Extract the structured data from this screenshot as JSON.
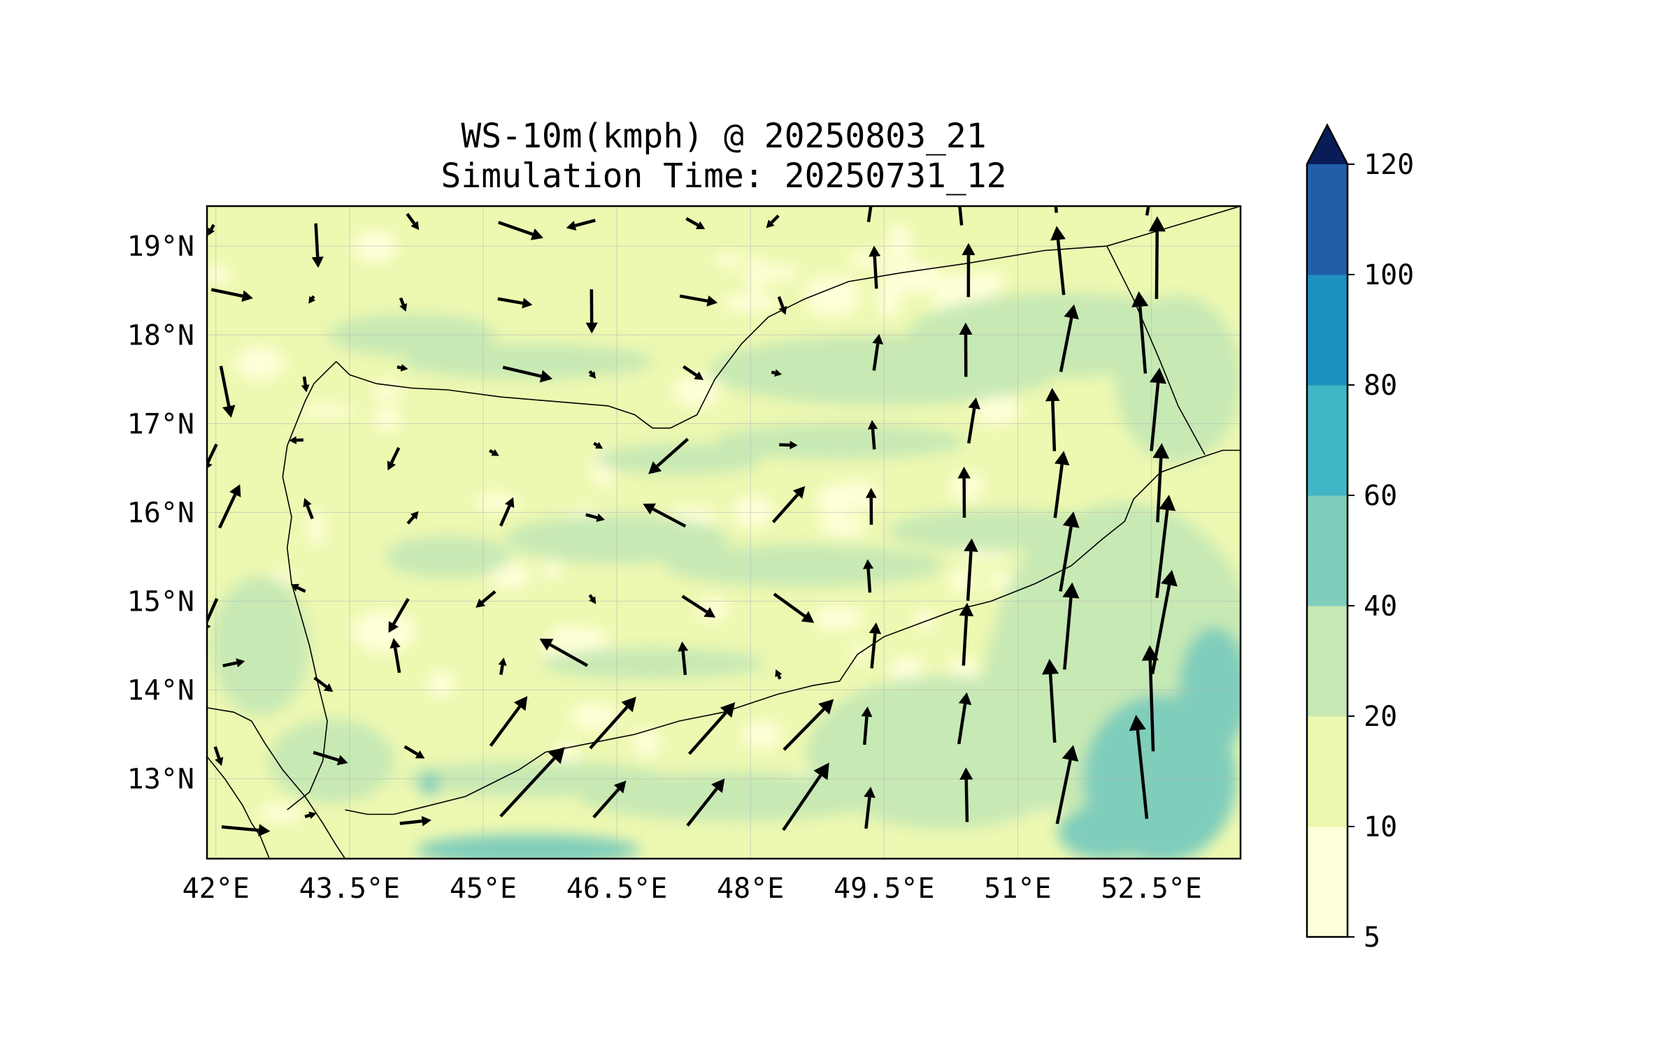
{
  "title": {
    "line1": "WS-10m(kmph) @ 20250803_21",
    "line2": "Simulation Time: 20250731_12"
  },
  "map": {
    "lon_range": [
      41.9,
      53.5
    ],
    "lat_range": [
      12.1,
      19.45
    ],
    "lon_ticks": [
      {
        "value": 42.0,
        "label": "42°E"
      },
      {
        "value": 43.5,
        "label": "43.5°E"
      },
      {
        "value": 45.0,
        "label": "45°E"
      },
      {
        "value": 46.5,
        "label": "46.5°E"
      },
      {
        "value": 48.0,
        "label": "48°E"
      },
      {
        "value": 49.5,
        "label": "49.5°E"
      },
      {
        "value": 51.0,
        "label": "51°E"
      },
      {
        "value": 52.5,
        "label": "52.5°E"
      }
    ],
    "lat_ticks": [
      {
        "value": 19,
        "label": "19°N"
      },
      {
        "value": 18,
        "label": "18°N"
      },
      {
        "value": 17,
        "label": "17°N"
      },
      {
        "value": 16,
        "label": "16°N"
      },
      {
        "value": 15,
        "label": "15°N"
      },
      {
        "value": 14,
        "label": "14°N"
      },
      {
        "value": 13,
        "label": "13°N"
      }
    ],
    "gridlines": true,
    "coastline": [
      [
        41.9,
        13.25
      ],
      [
        42.1,
        13.0
      ],
      [
        42.3,
        12.7
      ],
      [
        42.4,
        12.5
      ],
      [
        42.5,
        12.35
      ],
      [
        42.6,
        12.1
      ]
    ],
    "coastline_east_africa_edge": [
      [
        41.9,
        13.8
      ],
      [
        42.2,
        13.75
      ],
      [
        42.4,
        13.65
      ],
      [
        42.55,
        13.4
      ],
      [
        42.75,
        13.1
      ],
      [
        43.0,
        12.8
      ],
      [
        43.2,
        12.5
      ],
      [
        43.35,
        12.25
      ],
      [
        43.45,
        12.1
      ]
    ],
    "yemen_coast": [
      [
        43.45,
        12.65
      ],
      [
        43.7,
        12.6
      ],
      [
        44.0,
        12.6
      ],
      [
        44.4,
        12.7
      ],
      [
        44.8,
        12.8
      ],
      [
        45.1,
        12.95
      ],
      [
        45.4,
        13.1
      ],
      [
        45.7,
        13.3
      ],
      [
        46.2,
        13.4
      ],
      [
        46.7,
        13.5
      ],
      [
        47.2,
        13.65
      ],
      [
        47.7,
        13.75
      ],
      [
        48.3,
        13.95
      ],
      [
        48.7,
        14.05
      ],
      [
        49.0,
        14.1
      ],
      [
        49.2,
        14.4
      ],
      [
        49.5,
        14.6
      ],
      [
        49.9,
        14.75
      ],
      [
        50.3,
        14.9
      ],
      [
        50.7,
        15.0
      ],
      [
        51.2,
        15.2
      ],
      [
        51.6,
        15.4
      ],
      [
        51.95,
        15.7
      ],
      [
        52.2,
        15.9
      ],
      [
        52.3,
        16.15
      ],
      [
        52.6,
        16.45
      ],
      [
        53.0,
        16.6
      ],
      [
        53.3,
        16.7
      ],
      [
        53.5,
        16.7
      ]
    ],
    "red_sea_coast": [
      [
        42.8,
        12.65
      ],
      [
        43.05,
        12.85
      ],
      [
        43.2,
        13.2
      ],
      [
        43.25,
        13.65
      ],
      [
        43.15,
        14.05
      ],
      [
        43.05,
        14.5
      ],
      [
        42.95,
        14.85
      ],
      [
        42.85,
        15.2
      ],
      [
        42.8,
        15.6
      ],
      [
        42.85,
        15.95
      ],
      [
        42.75,
        16.4
      ],
      [
        42.8,
        16.75
      ],
      [
        42.9,
        17.0
      ],
      [
        43.0,
        17.25
      ],
      [
        43.1,
        17.45
      ],
      [
        43.25,
        17.6
      ],
      [
        43.35,
        17.7
      ]
    ],
    "border_saudi": [
      [
        43.35,
        17.7
      ],
      [
        43.5,
        17.55
      ],
      [
        43.8,
        17.45
      ],
      [
        44.2,
        17.4
      ],
      [
        44.6,
        17.38
      ],
      [
        45.2,
        17.3
      ],
      [
        45.8,
        17.25
      ],
      [
        46.4,
        17.2
      ],
      [
        46.7,
        17.1
      ],
      [
        46.9,
        16.95
      ],
      [
        47.1,
        16.95
      ],
      [
        47.4,
        17.1
      ],
      [
        47.6,
        17.5
      ],
      [
        47.9,
        17.9
      ],
      [
        48.2,
        18.2
      ],
      [
        48.6,
        18.4
      ],
      [
        49.1,
        18.6
      ],
      [
        49.7,
        18.7
      ],
      [
        50.4,
        18.8
      ],
      [
        51.3,
        18.95
      ],
      [
        52.0,
        19.0
      ],
      [
        53.0,
        19.3
      ],
      [
        53.5,
        19.45
      ]
    ],
    "border_oman": [
      [
        52.0,
        19.0
      ],
      [
        52.3,
        18.4
      ],
      [
        52.6,
        17.7
      ],
      [
        52.8,
        17.2
      ],
      [
        53.1,
        16.65
      ]
    ]
  },
  "colorbar": {
    "levels": [
      5,
      10,
      20,
      40,
      60,
      80,
      100,
      120
    ],
    "labels": [
      "5",
      "10",
      "20",
      "40",
      "60",
      "80",
      "100",
      "120"
    ],
    "colors": [
      "#ffffd9",
      "#edf8b1",
      "#c7e9b4",
      "#7fcdbb",
      "#41b6c4",
      "#1d91c0",
      "#225ea8",
      "#253494"
    ],
    "extend_color": "#081d58",
    "extend": "max"
  }
}
